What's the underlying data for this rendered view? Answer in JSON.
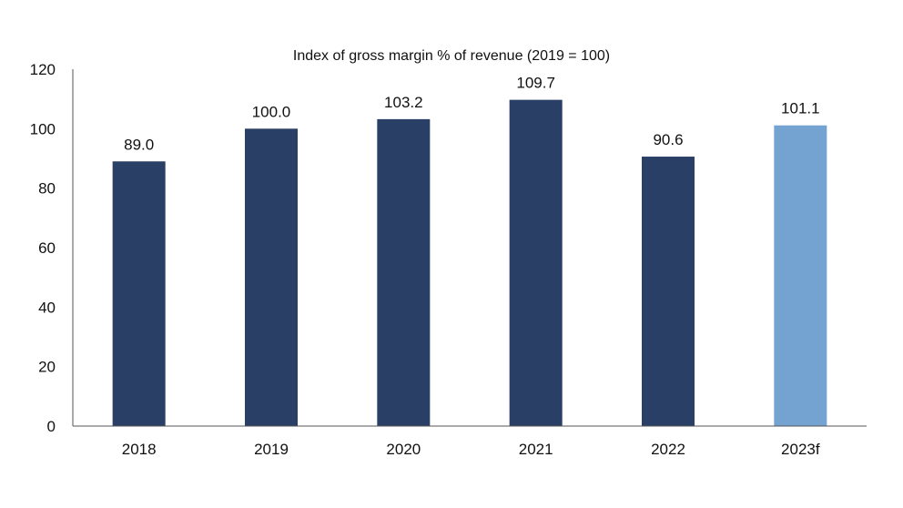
{
  "chart_data": {
    "type": "bar",
    "title": "Index of gross margin % of revenue (2019 = 100)",
    "xlabel": "",
    "ylabel": "",
    "categories": [
      "2018",
      "2019",
      "2020",
      "2021",
      "2022",
      "2023f"
    ],
    "values": [
      89.0,
      100.0,
      103.2,
      109.7,
      90.6,
      101.1
    ],
    "value_labels": [
      "89.0",
      "100.0",
      "103.2",
      "109.7",
      "90.6",
      "101.1"
    ],
    "ylim": [
      0,
      120
    ],
    "yticks": [
      0,
      20,
      40,
      60,
      80,
      100,
      120
    ],
    "grid": false,
    "legend": "none",
    "colors": {
      "actual": "#293f66",
      "forecast": "#74a3d2",
      "axis": "#555555"
    },
    "forecast_categories": [
      "2023f"
    ]
  }
}
